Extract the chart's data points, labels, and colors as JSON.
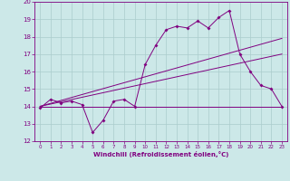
{
  "xlabel": "Windchill (Refroidissement éolien,°C)",
  "ylabel": "",
  "bg_color": "#cce8e8",
  "line_color": "#800080",
  "grid_color": "#aacccc",
  "xlim": [
    -0.5,
    23.5
  ],
  "ylim": [
    12,
    20
  ],
  "xticks": [
    0,
    1,
    2,
    3,
    4,
    5,
    6,
    7,
    8,
    9,
    10,
    11,
    12,
    13,
    14,
    15,
    16,
    17,
    18,
    19,
    20,
    21,
    22,
    23
  ],
  "yticks": [
    12,
    13,
    14,
    15,
    16,
    17,
    18,
    19,
    20
  ],
  "series1_x": [
    0,
    1,
    2,
    3,
    4,
    5,
    6,
    7,
    8,
    9,
    10,
    11,
    12,
    13,
    14,
    15,
    16,
    17,
    18,
    19,
    20,
    21,
    22,
    23
  ],
  "series1_y": [
    13.9,
    14.4,
    14.2,
    14.3,
    14.1,
    12.5,
    13.2,
    14.3,
    14.4,
    14.0,
    16.4,
    17.5,
    18.4,
    18.6,
    18.5,
    18.9,
    18.5,
    19.1,
    19.5,
    17.0,
    16.0,
    15.2,
    15.0,
    14.0
  ],
  "series2_x": [
    0,
    23
  ],
  "series2_y": [
    14.0,
    14.0
  ],
  "trend_x": [
    0,
    23
  ],
  "trend_y": [
    14.0,
    17.9
  ],
  "trend2_x": [
    0,
    23
  ],
  "trend2_y": [
    14.0,
    17.0
  ]
}
